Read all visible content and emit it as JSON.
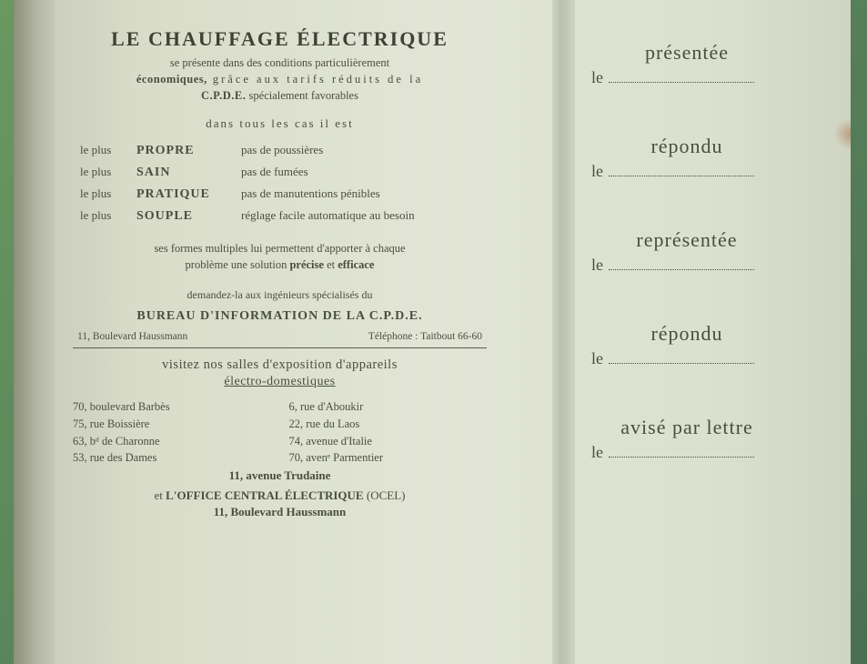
{
  "colors": {
    "page_bg": "#e0e3d2",
    "text": "#4a4e3f",
    "outer_bg": "#5b8058"
  },
  "left": {
    "title": "LE CHAUFFAGE ÉLECTRIQUE",
    "intro_l1_a": "se présente dans des conditions particulièrement",
    "intro_l2_a": "économiques,",
    "intro_l2_b": " grâce aux tarifs réduits de la",
    "intro_l3_a": "C.P.D.E.",
    "intro_l3_b": " spécialement favorables",
    "cases": "dans tous les cas il est",
    "qualities": [
      {
        "prefix": "le plus",
        "word": "PROPRE",
        "desc": "pas de poussières"
      },
      {
        "prefix": "le plus",
        "word": "SAIN",
        "desc": "pas de fumées"
      },
      {
        "prefix": "le plus",
        "word": "PRATIQUE",
        "desc": "pas de manutentions pénibles"
      },
      {
        "prefix": "le plus",
        "word": "SOUPLE",
        "desc": "réglage facile automatique au besoin"
      }
    ],
    "sol_l1": "ses formes multiples lui permettent d'apporter à chaque",
    "sol_l2_a": "problème une solution ",
    "sol_l2_b": "précise",
    "sol_l2_c": " et ",
    "sol_l2_d": "efficace",
    "demand": "demandez-la aux ingénieurs spécialisés du",
    "bureau": "BUREAU D'INFORMATION DE LA C.P.D.E.",
    "addr_bureau": "11, Boulevard Haussmann",
    "tel": "Téléphone : Taitbout 66-60",
    "visit": "visitez nos salles d'exposition d'appareils",
    "electro": "électro-domestiques",
    "addrs_left": [
      "70, boulevard Barbès",
      "75, rue Boissière",
      "63, bᵈ de Charonne",
      "53, rue des Dames"
    ],
    "addrs_right": [
      "6, rue d'Aboukir",
      "22, rue du Laos",
      "74, avenue d'Italie",
      "70, avenᵉ Parmentier"
    ],
    "trudaine": "11, avenue Trudaine",
    "ocel_a": "et ",
    "ocel_b": "L'OFFICE CENTRAL ÉLECTRIQUE",
    "ocel_c": " (OCEL)",
    "haussmann2": "11, Boulevard Haussmann"
  },
  "right": {
    "groups": [
      {
        "label": "présentée",
        "prefix": "le"
      },
      {
        "label": "répondu",
        "prefix": "le"
      },
      {
        "label": "représentée",
        "prefix": "le"
      },
      {
        "label": "répondu",
        "prefix": "le"
      },
      {
        "label": "avisé par lettre",
        "prefix": "le"
      }
    ]
  }
}
